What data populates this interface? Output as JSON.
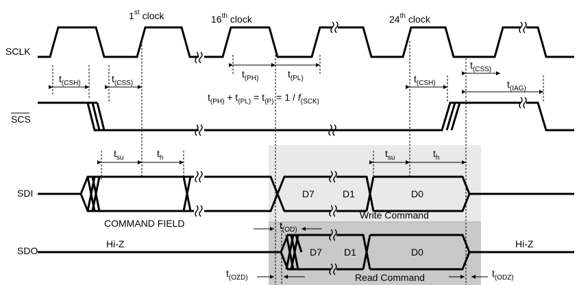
{
  "signals": {
    "sclk": "SCLK",
    "scs": "SCS",
    "sdi": "SDI",
    "sdo": "SDO"
  },
  "clocks": {
    "first": {
      "num": "1",
      "sup": "st",
      "word": "clock"
    },
    "sixteenth": {
      "num": "16",
      "sup": "th",
      "word": "clock"
    },
    "twentyfourth": {
      "num": "24",
      "sup": "th",
      "word": "clock"
    }
  },
  "timing": {
    "csh": {
      "t": "t",
      "sub": "(CSH)"
    },
    "css": {
      "t": "t",
      "sub": "(CSS)"
    },
    "ph": {
      "t": "t",
      "sub": "(PH)"
    },
    "pl": {
      "t": "t",
      "sub": "(PL)"
    },
    "iag": {
      "t": "t",
      "sub": "(IAG)"
    },
    "su": {
      "t": "t",
      "sub": "su"
    },
    "h": {
      "t": "t",
      "sub": "h"
    },
    "od": {
      "t": "t",
      "sub": "(OD)"
    },
    "ozd": {
      "t": "t",
      "sub": "(OZD)"
    },
    "odz": {
      "t": "t",
      "sub": "(ODZ)"
    }
  },
  "equation": {
    "t1": "t",
    "s1": "(PH)",
    "plus": " + t",
    "s2": "(PL)",
    "eq": " = t",
    "s3": "(P)",
    "mid": " = 1 / ",
    "f": "f",
    "s4": "(SCK)"
  },
  "data_bits": {
    "d7": "D7",
    "d1": "D1",
    "d0": "D0"
  },
  "labels": {
    "command_field": "COMMAND FIELD",
    "write_command": "Write Command",
    "read_command": "Read Command",
    "hiz": "Hi-Z"
  },
  "colors": {
    "write_region": "#e9e9e9",
    "read_region": "#c9c9c9",
    "line": "#000000"
  }
}
